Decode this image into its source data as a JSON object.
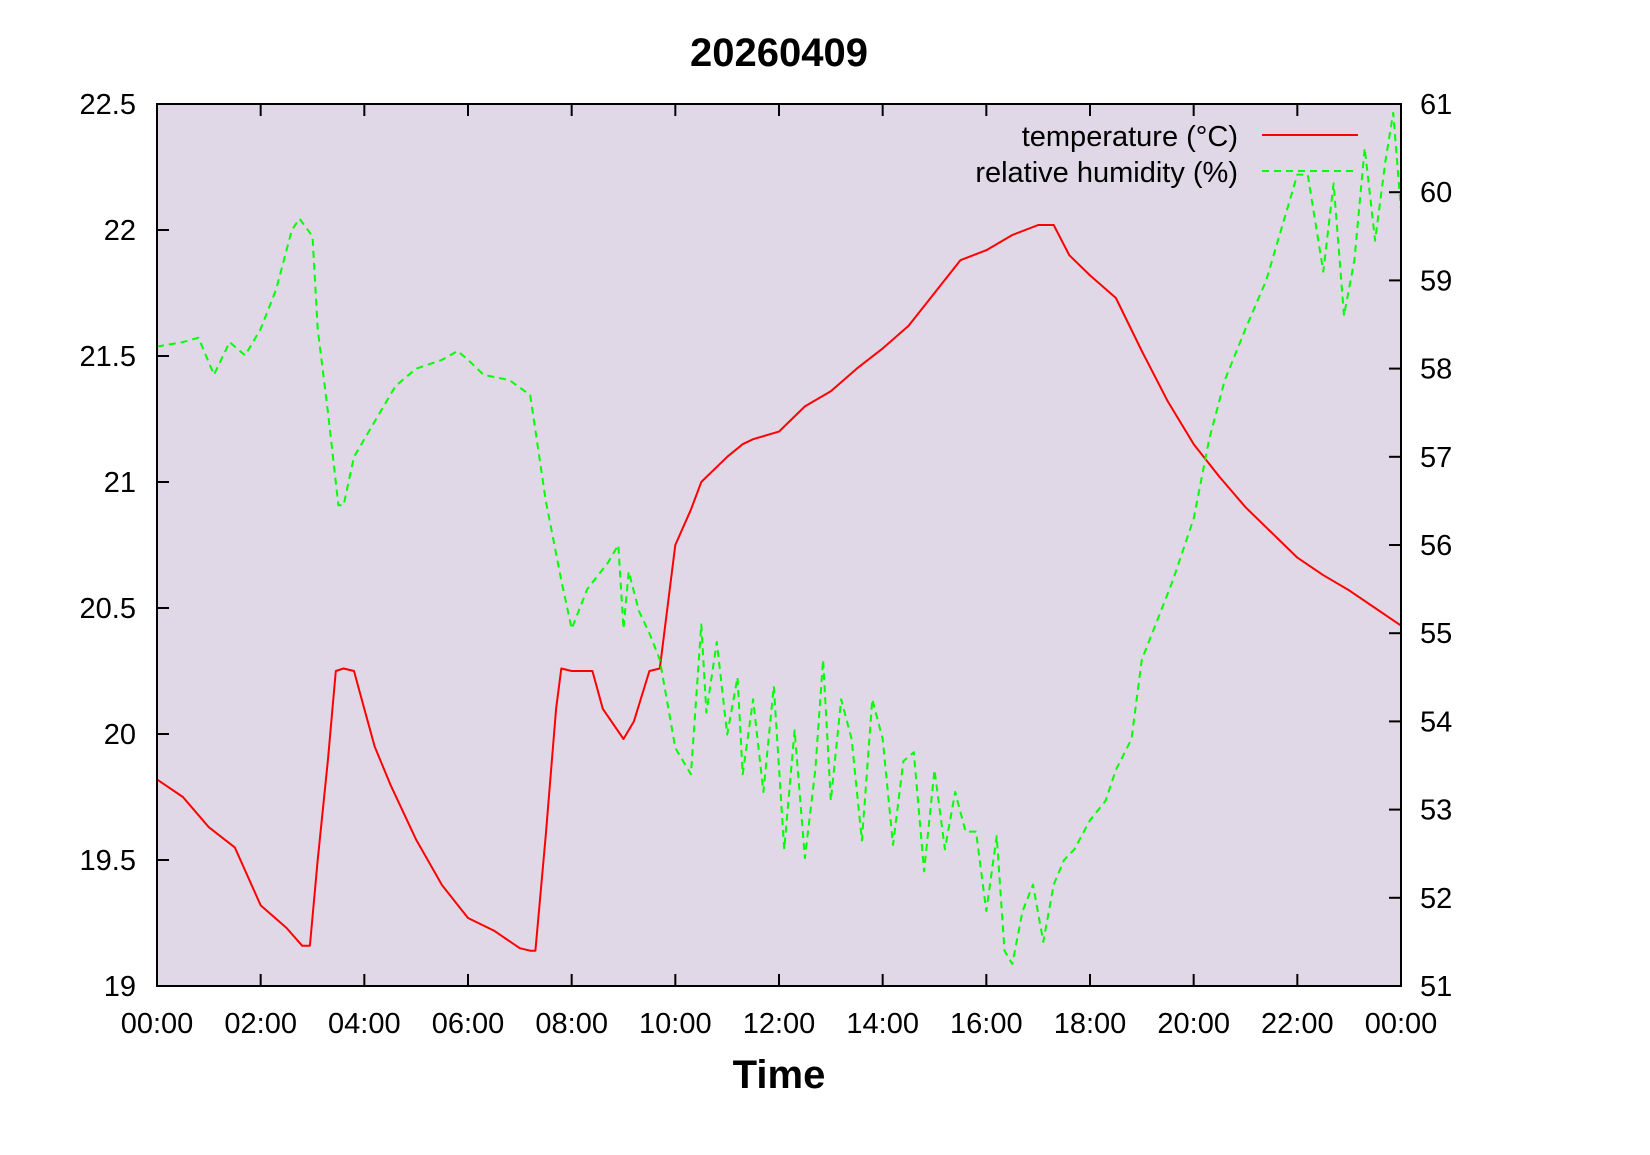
{
  "chart_data": {
    "type": "line",
    "title": "20260409",
    "xlabel": "Time",
    "ylabel": "",
    "y2label": "",
    "xlim": [
      0,
      24
    ],
    "ylim": [
      19,
      22.5
    ],
    "y2lim": [
      51,
      61
    ],
    "grid": false,
    "legend_position": "top-right",
    "x_ticks": [
      "00:00",
      "02:00",
      "04:00",
      "06:00",
      "08:00",
      "10:00",
      "12:00",
      "14:00",
      "16:00",
      "18:00",
      "20:00",
      "22:00",
      "00:00"
    ],
    "y_ticks": [
      "19",
      "19.5",
      "20",
      "20.5",
      "21",
      "21.5",
      "22",
      "22.5"
    ],
    "y2_ticks": [
      "51",
      "52",
      "53",
      "54",
      "55",
      "56",
      "57",
      "58",
      "59",
      "60",
      "61"
    ],
    "colors": {
      "background": "#e0d8e6",
      "temperature": "#ff0000",
      "humidity": "#00ff00"
    },
    "series": [
      {
        "name": "temperature (°C)",
        "axis": "left",
        "style": "solid",
        "x": [
          0,
          0.5,
          1,
          1.5,
          2,
          2.5,
          2.8,
          2.95,
          3.1,
          3.3,
          3.45,
          3.6,
          3.8,
          4,
          4.2,
          4.5,
          5,
          5.5,
          6,
          6.5,
          7,
          7.2,
          7.3,
          7.5,
          7.7,
          7.8,
          8,
          8.4,
          8.6,
          9,
          9.2,
          9.5,
          9.7,
          10,
          10.3,
          10.5,
          11,
          11.3,
          11.5,
          12,
          12.5,
          13,
          13.5,
          14,
          14.5,
          15,
          15.5,
          16,
          16.5,
          17,
          17.3,
          17.6,
          18,
          18.5,
          19,
          19.5,
          20,
          20.5,
          21,
          21.5,
          22,
          22.5,
          23,
          23.5,
          24
        ],
        "values": [
          19.82,
          19.75,
          19.63,
          19.55,
          19.32,
          19.23,
          19.16,
          19.16,
          19.5,
          19.9,
          20.25,
          20.26,
          20.25,
          20.1,
          19.95,
          19.8,
          19.58,
          19.4,
          19.27,
          19.22,
          19.15,
          19.14,
          19.14,
          19.6,
          20.1,
          20.26,
          20.25,
          20.25,
          20.1,
          19.98,
          20.05,
          20.25,
          20.26,
          20.75,
          20.89,
          21.0,
          21.1,
          21.15,
          21.17,
          21.2,
          21.3,
          21.36,
          21.45,
          21.53,
          21.62,
          21.75,
          21.88,
          21.92,
          21.98,
          22.02,
          22.02,
          21.9,
          21.82,
          21.73,
          21.52,
          21.32,
          21.15,
          21.02,
          20.9,
          20.8,
          20.7,
          20.63,
          20.57,
          20.5,
          20.43
        ]
      },
      {
        "name": "relative humidity (%)",
        "axis": "right",
        "style": "dashed",
        "x": [
          0,
          0.5,
          0.8,
          1.1,
          1.4,
          1.7,
          2,
          2.3,
          2.6,
          2.75,
          3,
          3.1,
          3.3,
          3.5,
          3.6,
          3.8,
          4.2,
          4.6,
          5,
          5.5,
          5.8,
          6,
          6.3,
          6.8,
          7.2,
          7.5,
          7.8,
          8,
          8.3,
          8.7,
          8.9,
          9.0,
          9.1,
          9.3,
          9.5,
          9.7,
          10,
          10.3,
          10.5,
          10.6,
          10.8,
          11,
          11.2,
          11.3,
          11.5,
          11.7,
          11.9,
          12.1,
          12.3,
          12.5,
          12.7,
          12.85,
          13,
          13.2,
          13.4,
          13.6,
          13.8,
          14,
          14.2,
          14.4,
          14.6,
          14.8,
          15,
          15.2,
          15.4,
          15.6,
          15.8,
          16,
          16.2,
          16.35,
          16.5,
          16.7,
          16.9,
          17.1,
          17.3,
          17.5,
          17.7,
          18,
          18.3,
          18.5,
          18.8,
          19,
          19.3,
          19.6,
          20,
          20.3,
          20.6,
          21,
          21.4,
          21.8,
          22,
          22.2,
          22.5,
          22.7,
          22.9,
          23.1,
          23.3,
          23.5,
          23.7,
          23.85,
          24
        ],
        "values": [
          58.25,
          58.3,
          58.35,
          57.93,
          58.3,
          58.15,
          58.45,
          58.9,
          59.57,
          59.7,
          59.5,
          58.45,
          57.5,
          56.45,
          56.45,
          57.0,
          57.4,
          57.8,
          58.0,
          58.1,
          58.2,
          58.1,
          57.93,
          57.87,
          57.7,
          56.5,
          55.6,
          55.05,
          55.5,
          55.8,
          56.0,
          55.05,
          55.7,
          55.25,
          55.0,
          54.7,
          53.7,
          53.4,
          55.1,
          54.1,
          54.9,
          53.85,
          54.5,
          53.4,
          54.25,
          53.2,
          54.4,
          52.55,
          53.9,
          52.45,
          53.45,
          54.7,
          53.1,
          54.25,
          53.8,
          52.65,
          54.25,
          53.8,
          52.6,
          53.55,
          53.65,
          52.3,
          53.45,
          52.55,
          53.2,
          52.75,
          52.75,
          51.85,
          52.7,
          51.4,
          51.25,
          51.85,
          52.15,
          51.5,
          52.15,
          52.43,
          52.55,
          52.88,
          53.1,
          53.45,
          53.8,
          54.7,
          55.15,
          55.6,
          56.3,
          57.2,
          57.87,
          58.45,
          59.0,
          59.8,
          60.2,
          60.2,
          59.1,
          60.1,
          58.6,
          59.23,
          60.5,
          59.45,
          60.35,
          60.9,
          59.8
        ]
      }
    ]
  }
}
